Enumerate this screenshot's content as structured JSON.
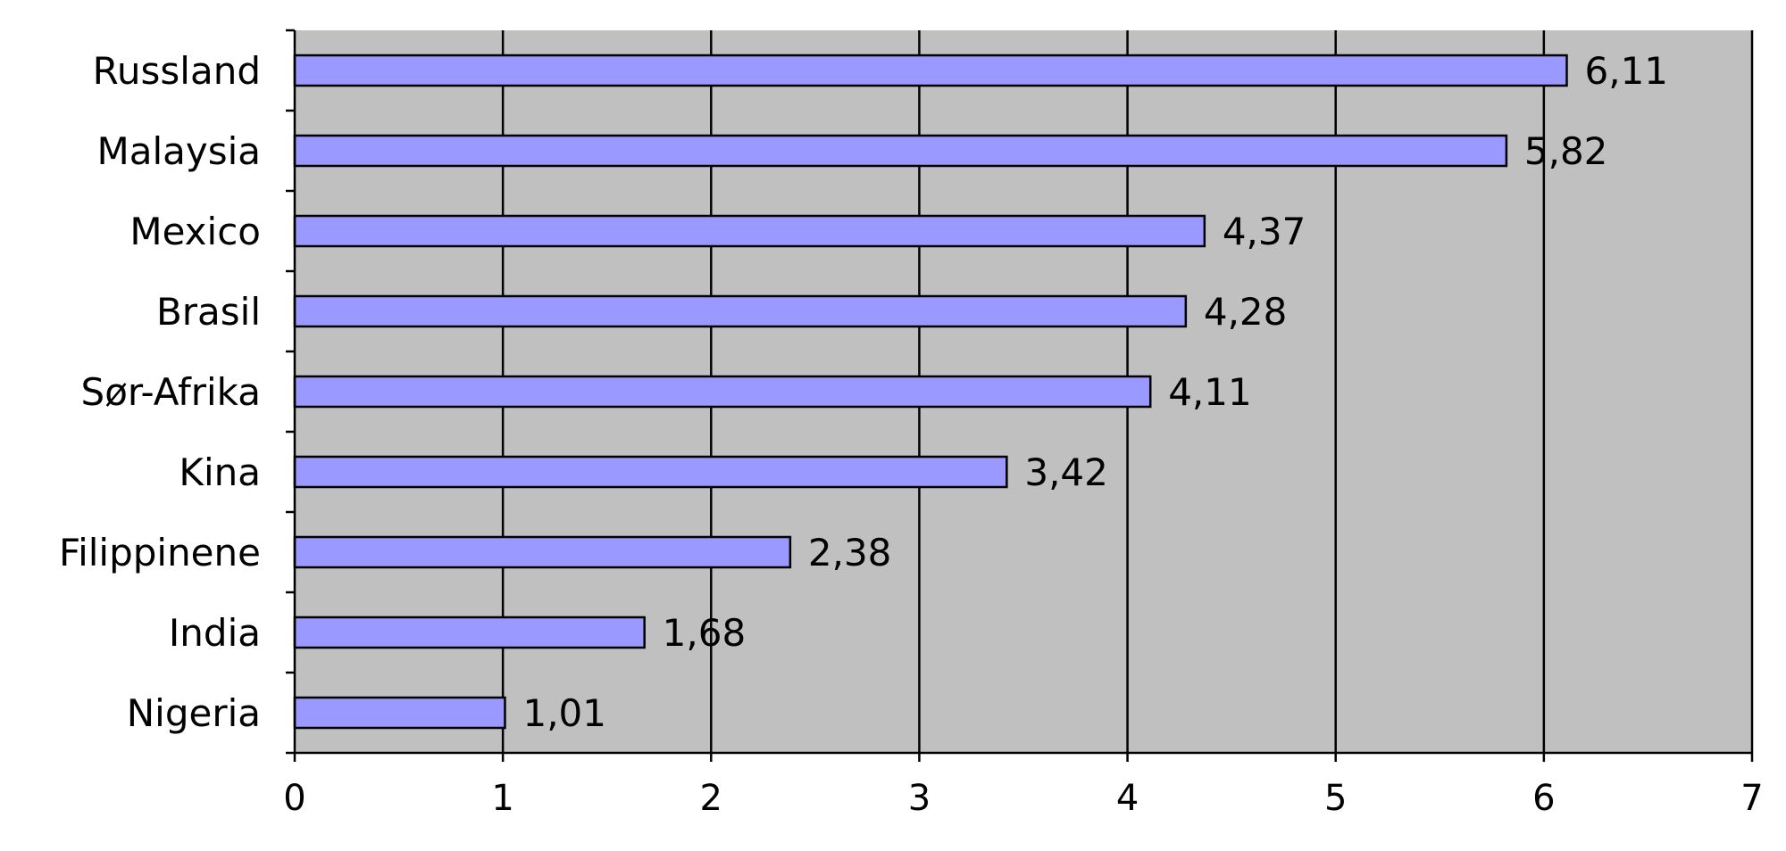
{
  "chart_data": {
    "type": "bar",
    "orientation": "horizontal",
    "categories": [
      "Russland",
      "Malaysia",
      "Mexico",
      "Brasil",
      "Sør-Afrika",
      "Kina",
      "Filippinene",
      "India",
      "Nigeria"
    ],
    "values": [
      6.11,
      5.82,
      4.37,
      4.28,
      4.11,
      3.42,
      2.38,
      1.68,
      1.01
    ],
    "value_labels": [
      "6,11",
      "5,82",
      "4,37",
      "4,28",
      "4,11",
      "3,42",
      "2,38",
      "1,68",
      "1,01"
    ],
    "xlim": [
      0,
      7
    ],
    "x_ticks": [
      0,
      1,
      2,
      3,
      4,
      5,
      6,
      7
    ],
    "x_tick_labels": [
      "0",
      "1",
      "2",
      "3",
      "4",
      "5",
      "6",
      "7"
    ],
    "grid": true,
    "title": "",
    "xlabel": "",
    "ylabel": "",
    "colors": {
      "bar_fill": "#9999ff",
      "bar_stroke": "#000000",
      "plot_background": "#c0c0c0",
      "gridline": "#000000"
    }
  }
}
